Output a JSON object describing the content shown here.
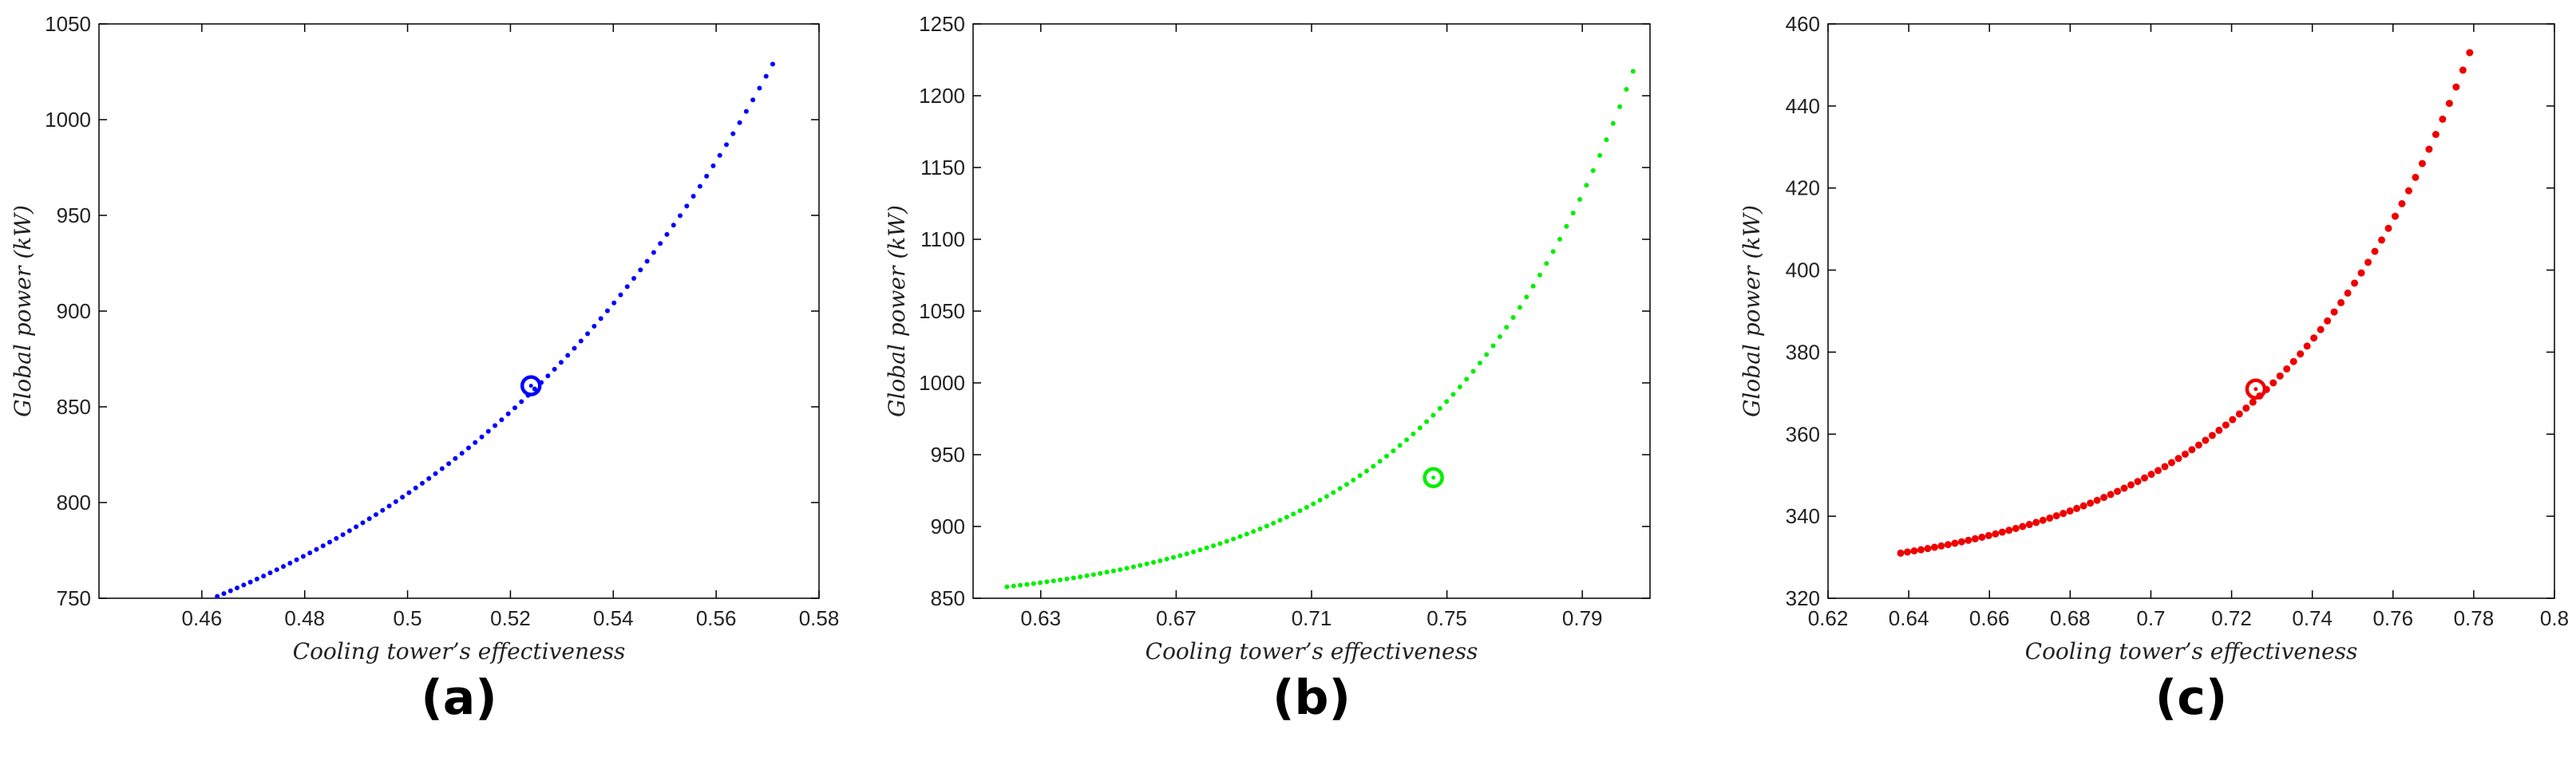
{
  "chart_data": [
    {
      "type": "scatter",
      "panel_label": "(a)",
      "xlabel": "Cooling tower’s effectiveness",
      "ylabel": "Global power (kW)",
      "xlim": [
        0.44,
        0.58
      ],
      "ylim": [
        750,
        1050
      ],
      "xticks": [
        0.46,
        0.48,
        0.5,
        0.52,
        0.54,
        0.56,
        0.58
      ],
      "xtick_labels": [
        "0.46",
        "0.48",
        "0.5",
        "0.52",
        "0.54",
        "0.56",
        "0.58"
      ],
      "yticks": [
        750,
        800,
        850,
        900,
        950,
        1000,
        1050
      ],
      "ytick_labels": [
        "750",
        "800",
        "850",
        "900",
        "950",
        "1000",
        "1050"
      ],
      "grid": false,
      "color": "#0000ff",
      "marker_size": 3,
      "curve_x_range": [
        0.463,
        0.571
      ],
      "curve_y_range": [
        751,
        1029
      ],
      "curve_shape": 1.5,
      "num_points": 85,
      "highlight": {
        "x": 0.524,
        "y": 861
      }
    },
    {
      "type": "scatter",
      "panel_label": "(b)",
      "xlabel": "Cooling tower’s effectiveness",
      "ylabel": "Global power (kW)",
      "xlim": [
        0.61,
        0.81
      ],
      "ylim": [
        850,
        1250
      ],
      "xticks": [
        0.63,
        0.67,
        0.71,
        0.75,
        0.79
      ],
      "xtick_labels": [
        "0.63",
        "0.67",
        "0.71",
        "0.75",
        "0.79"
      ],
      "yticks": [
        850,
        900,
        950,
        1000,
        1050,
        1100,
        1150,
        1200,
        1250
      ],
      "ytick_labels": [
        "850",
        "900",
        "950",
        "1000",
        "1050",
        "1100",
        "1150",
        "1200",
        "1250"
      ],
      "grid": false,
      "color": "#00ee00",
      "marker_size": 3,
      "curve_x_range": [
        0.62,
        0.805
      ],
      "curve_y_range": [
        858,
        1217
      ],
      "curve_shape": 3.2,
      "num_points": 95,
      "highlight": {
        "x": 0.746,
        "y": 934
      }
    },
    {
      "type": "scatter",
      "panel_label": "(c)",
      "xlabel": "Cooling tower’s effectiveness",
      "ylabel": "Global power (kW)",
      "xlim": [
        0.62,
        0.8
      ],
      "ylim": [
        320,
        460
      ],
      "xticks": [
        0.62,
        0.64,
        0.66,
        0.68,
        0.7,
        0.72,
        0.74,
        0.76,
        0.78,
        0.8
      ],
      "xtick_labels": [
        "0.62",
        "0.64",
        "0.66",
        "0.68",
        "0.7",
        "0.72",
        "0.74",
        "0.76",
        "0.78",
        "0.8"
      ],
      "yticks": [
        320,
        340,
        360,
        380,
        400,
        420,
        440,
        460
      ],
      "ytick_labels": [
        "320",
        "340",
        "360",
        "380",
        "400",
        "420",
        "440",
        "460"
      ],
      "grid": false,
      "color": "#ee0000",
      "marker_size": 4.5,
      "curve_x_range": [
        0.638,
        0.779
      ],
      "curve_y_range": [
        331,
        453
      ],
      "curve_shape": 2.8,
      "num_points": 85,
      "highlight": {
        "x": 0.726,
        "y": 371
      }
    }
  ]
}
